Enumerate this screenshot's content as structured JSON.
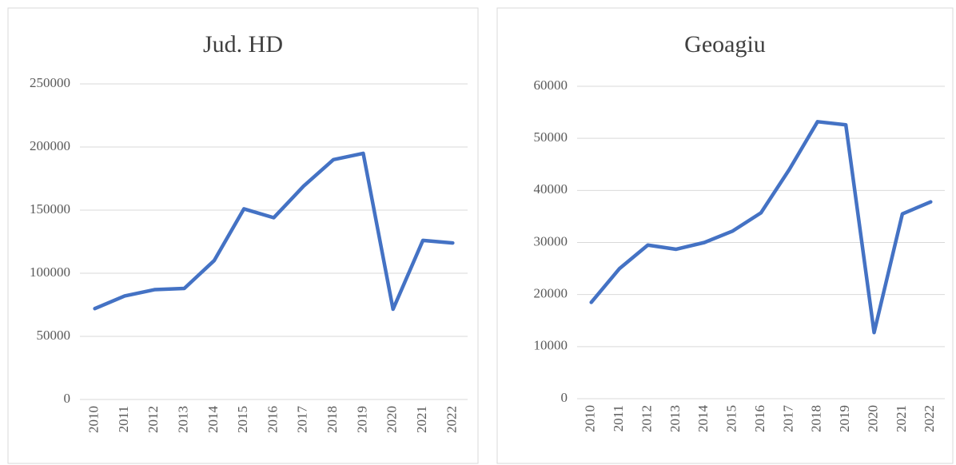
{
  "chart_data": [
    {
      "type": "line",
      "title": "Jud. HD",
      "categories": [
        "2010",
        "2011",
        "2012",
        "2013",
        "2014",
        "2015",
        "2016",
        "2017",
        "2018",
        "2019",
        "2020",
        "2021",
        "2022"
      ],
      "series": [
        {
          "name": "Jud. HD",
          "color": "#4472c4",
          "values": [
            72000,
            82000,
            87000,
            88000,
            110000,
            151000,
            144000,
            169000,
            190000,
            195000,
            71500,
            126000,
            124000
          ]
        }
      ],
      "ylim": [
        0,
        250000
      ],
      "yticks": [
        0,
        50000,
        100000,
        150000,
        200000,
        250000
      ],
      "grid": true
    },
    {
      "type": "line",
      "title": "Geoagiu",
      "categories": [
        "2010",
        "2011",
        "2012",
        "2013",
        "2014",
        "2015",
        "2016",
        "2017",
        "2018",
        "2019",
        "2020",
        "2021",
        "2022"
      ],
      "series": [
        {
          "name": "Geoagiu",
          "color": "#4472c4",
          "values": [
            18500,
            25000,
            29500,
            28700,
            30000,
            32200,
            35700,
            44000,
            53200,
            52600,
            12700,
            35500,
            37800
          ]
        }
      ],
      "ylim": [
        0,
        60000
      ],
      "yticks": [
        0,
        10000,
        20000,
        30000,
        40000,
        50000,
        60000
      ],
      "grid": true
    }
  ]
}
